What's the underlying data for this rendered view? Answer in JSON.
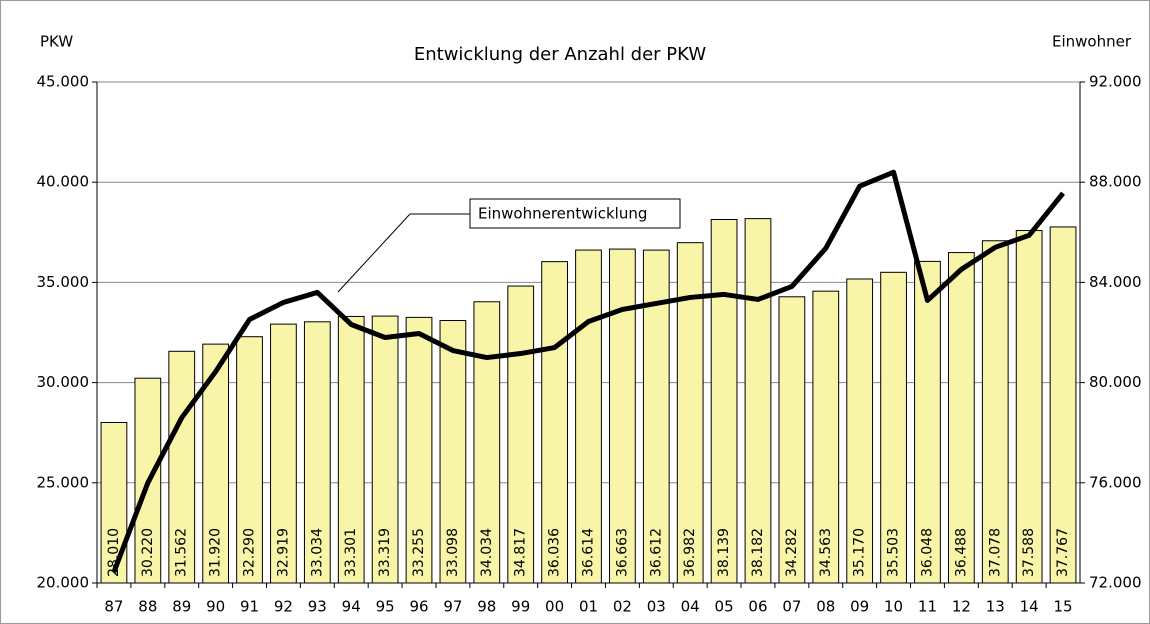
{
  "chart_data": {
    "type": "bar",
    "title": "Entwicklung der Anzahl der PKW",
    "y_label": "PKW",
    "y2_label": "Einwohner",
    "categories": [
      "87",
      "88",
      "89",
      "90",
      "91",
      "92",
      "93",
      "94",
      "95",
      "96",
      "97",
      "98",
      "99",
      "00",
      "01",
      "02",
      "03",
      "04",
      "05",
      "06",
      "07",
      "08",
      "09",
      "10",
      "11",
      "12",
      "13",
      "14",
      "15"
    ],
    "series": [
      {
        "type": "bar",
        "color": "#f8f4a8",
        "values": [
          28010,
          30220,
          31562,
          31920,
          32290,
          32919,
          33034,
          33301,
          33319,
          33255,
          33098,
          34034,
          34817,
          36036,
          36614,
          36663,
          36612,
          36982,
          38139,
          38182,
          34282,
          34563,
          35170,
          35503,
          36048,
          36488,
          37078,
          37588,
          37767
        ],
        "value_labels": [
          "28.010",
          "30.220",
          "31.562",
          "31.920",
          "32.290",
          "32.919",
          "33.034",
          "33.301",
          "33.319",
          "33.255",
          "33.098",
          "34.034",
          "34.817",
          "36.036",
          "36.614",
          "36.663",
          "36.612",
          "36.982",
          "38.139",
          "38.182",
          "34.282",
          "34.563",
          "35.170",
          "35.503",
          "36.048",
          "36.488",
          "37.078",
          "37.588",
          "37.767"
        ]
      },
      {
        "type": "line",
        "name": "Einwohnerentwicklung",
        "axis": "y2",
        "color": "#000000",
        "values": [
          72440,
          76000,
          78600,
          80440,
          82520,
          83200,
          83600,
          82320,
          81800,
          81960,
          81280,
          81000,
          81160,
          81400,
          82440,
          82920,
          83160,
          83400,
          83520,
          83320,
          83840,
          85360,
          87840,
          88400,
          83280,
          84520,
          85400,
          85880,
          87560
        ]
      }
    ],
    "ylim": [
      20000,
      45000
    ],
    "yticks": [
      {
        "value": 20000,
        "label": "20.000"
      },
      {
        "value": 25000,
        "label": "25.000"
      },
      {
        "value": 30000,
        "label": "30.000"
      },
      {
        "value": 35000,
        "label": "35.000"
      },
      {
        "value": 40000,
        "label": "40.000"
      },
      {
        "value": 45000,
        "label": "45.000"
      }
    ],
    "y2lim": [
      72000,
      92000
    ],
    "y2ticks": [
      {
        "value": 72000,
        "label": "72.000"
      },
      {
        "value": 76000,
        "label": "76.000"
      },
      {
        "value": 80000,
        "label": "80.000"
      },
      {
        "value": 84000,
        "label": "84.000"
      },
      {
        "value": 88000,
        "label": "88.000"
      },
      {
        "value": 92000,
        "label": "92.000"
      }
    ],
    "grid": true
  }
}
